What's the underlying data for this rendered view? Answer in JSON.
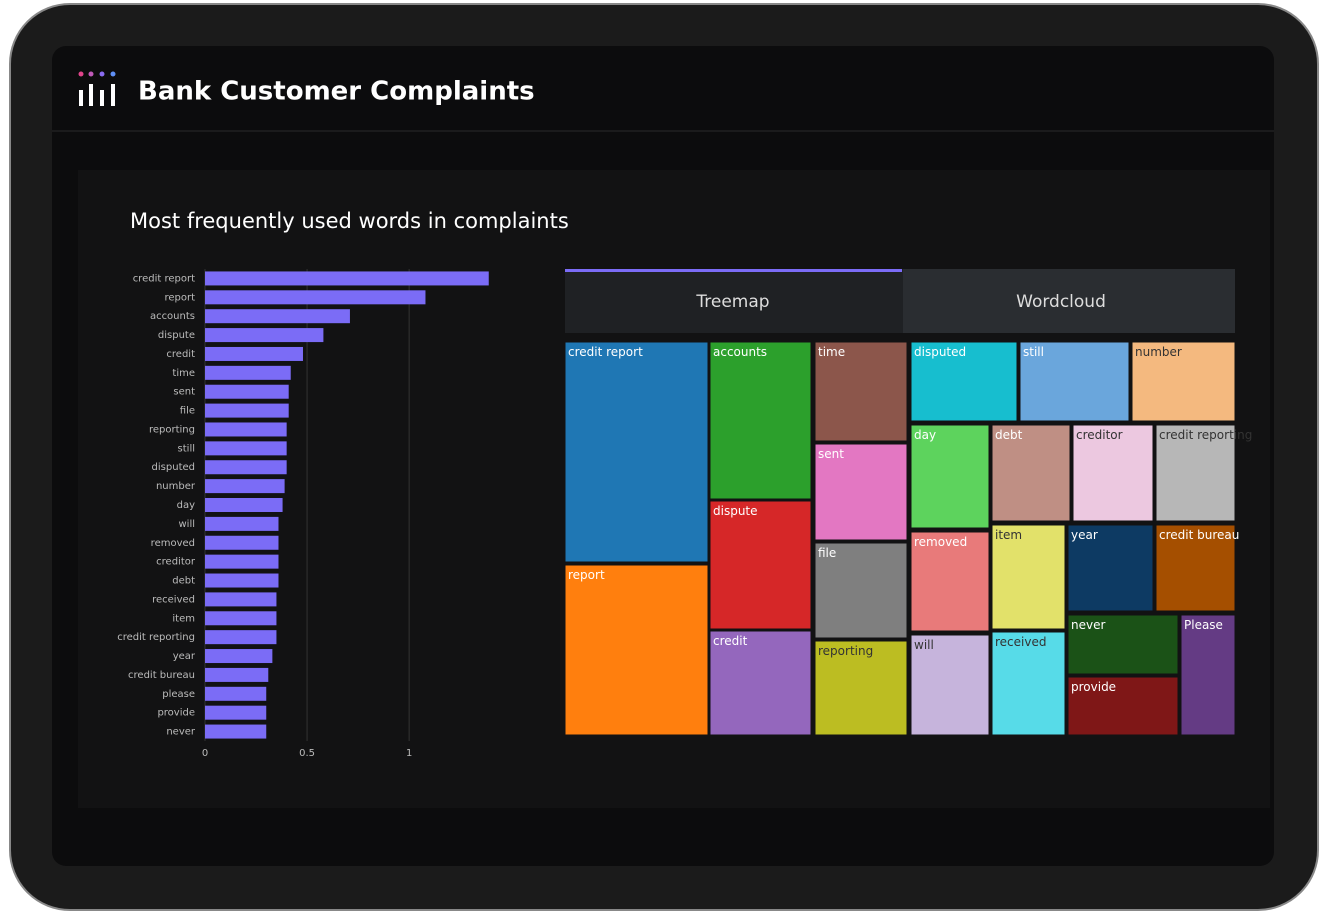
{
  "header": {
    "title": "Bank Customer Complaints"
  },
  "tabs": [
    "Treemap",
    "Wordcloud"
  ],
  "chart_data": [
    {
      "type": "bar",
      "orientation": "horizontal",
      "title": "Most frequently used words in complaints",
      "categories": [
        "credit report",
        "report",
        "accounts",
        "dispute",
        "credit",
        "time",
        "sent",
        "file",
        "reporting",
        "still",
        "disputed",
        "number",
        "day",
        "will",
        "removed",
        "creditor",
        "debt",
        "received",
        "item",
        "credit reporting",
        "year",
        "credit bureau",
        "please",
        "provide",
        "never"
      ],
      "values": [
        1.39,
        1.08,
        0.71,
        0.58,
        0.48,
        0.42,
        0.41,
        0.41,
        0.4,
        0.4,
        0.4,
        0.39,
        0.38,
        0.36,
        0.36,
        0.36,
        0.36,
        0.35,
        0.35,
        0.35,
        0.33,
        0.31,
        0.3,
        0.3,
        0.3
      ],
      "color": "#7b6cf6",
      "xlim": [
        0,
        1.45
      ],
      "xticks": [
        0,
        0.5,
        1
      ],
      "grid": true
    },
    {
      "type": "treemap",
      "labels": [
        "credit report",
        "report",
        "accounts",
        "dispute",
        "credit",
        "time",
        "sent",
        "file",
        "reporting",
        "disputed",
        "still",
        "number",
        "day",
        "debt",
        "creditor",
        "credit reporting",
        "removed",
        "will",
        "item",
        "received",
        "year",
        "credit bureau",
        "never",
        "provide",
        "Please"
      ],
      "colors": [
        "#1f77b4",
        "#ff7f0e",
        "#2ca02c",
        "#d62728",
        "#9467bd",
        "#8c564b",
        "#e377c2",
        "#7f7f7f",
        "#bcbd22",
        "#17becf",
        "#6aa6dc",
        "#f4b97f",
        "#5dd35d",
        "#bf8f84",
        "#ecc8e0",
        "#b7b7b7",
        "#e87a7a",
        "#c6b4dc",
        "#e2e16a",
        "#57dbe8",
        "#0d3a63",
        "#a54f00",
        "#1b5217",
        "#7f1717",
        "#643b84"
      ]
    }
  ]
}
